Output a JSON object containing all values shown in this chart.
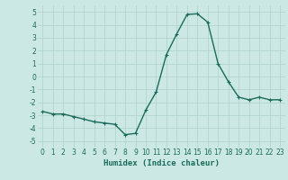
{
  "x": [
    0,
    1,
    2,
    3,
    4,
    5,
    6,
    7,
    8,
    9,
    10,
    11,
    12,
    13,
    14,
    15,
    16,
    17,
    18,
    19,
    20,
    21,
    22,
    23
  ],
  "y": [
    -2.7,
    -2.9,
    -2.9,
    -3.1,
    -3.3,
    -3.5,
    -3.6,
    -3.7,
    -4.5,
    -4.4,
    -2.6,
    -1.2,
    1.7,
    3.3,
    4.8,
    4.85,
    4.2,
    1.0,
    -0.4,
    -1.6,
    -1.8,
    -1.6,
    -1.8,
    -1.8
  ],
  "line_color": "#1a6b5a",
  "marker": "+",
  "marker_size": 3,
  "background_color": "#cce8e4",
  "grid_color": "#aed0cc",
  "tick_color": "#1a6b5a",
  "xlabel": "Humidex (Indice chaleur)",
  "ylim": [
    -5.5,
    5.5
  ],
  "xlim": [
    -0.5,
    23.5
  ],
  "yticks": [
    -5,
    -4,
    -3,
    -2,
    -1,
    0,
    1,
    2,
    3,
    4,
    5
  ],
  "xticks": [
    0,
    1,
    2,
    3,
    4,
    5,
    6,
    7,
    8,
    9,
    10,
    11,
    12,
    13,
    14,
    15,
    16,
    17,
    18,
    19,
    20,
    21,
    22,
    23
  ],
  "font_size_label": 6.5,
  "font_size_tick": 5.5,
  "line_width": 1.0
}
